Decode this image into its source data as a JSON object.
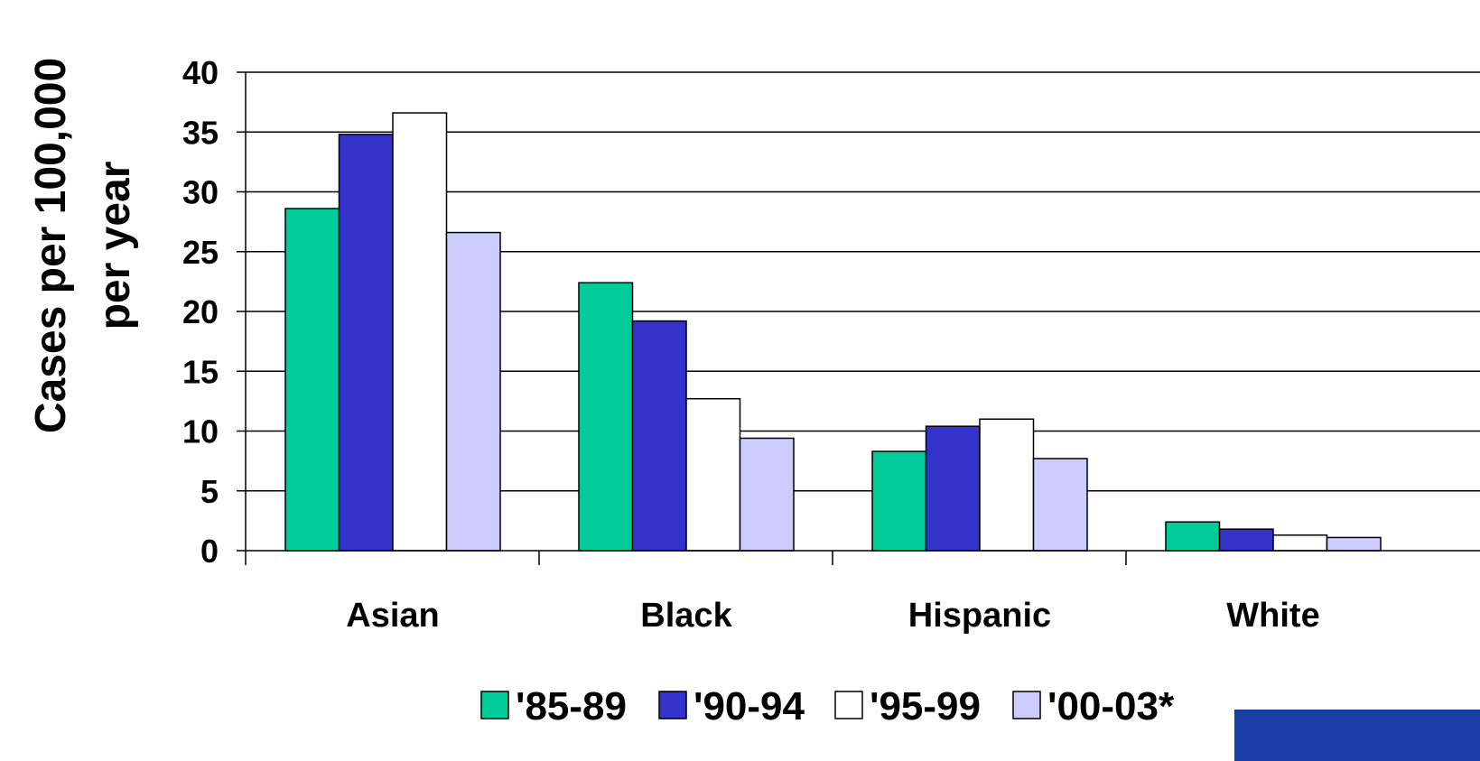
{
  "chart_data": {
    "type": "bar",
    "title": "",
    "xlabel": "",
    "ylabel": {
      "line1": "Cases per 100,000",
      "line2": "per year"
    },
    "ylim": [
      0,
      40
    ],
    "yticks": [
      "0",
      "5",
      "10",
      "15",
      "20",
      "25",
      "30",
      "35",
      "40"
    ],
    "grid": true,
    "legend_position": "bottom",
    "categories": [
      "Asian",
      "Black",
      "Hispanic",
      "White"
    ],
    "series": [
      {
        "name": "'85-89",
        "color": "#00cc99",
        "values": [
          28.6,
          22.4,
          8.3,
          2.4
        ]
      },
      {
        "name": "'90-94",
        "color": "#3333cc",
        "values": [
          34.8,
          19.2,
          10.4,
          1.8
        ]
      },
      {
        "name": "'95-99",
        "color": "#ffffff",
        "values": [
          36.6,
          12.7,
          11.0,
          1.3
        ]
      },
      {
        "name": "'00-03*",
        "color": "#ccccff",
        "values": [
          26.6,
          9.4,
          7.7,
          1.1
        ]
      }
    ]
  },
  "decor": {
    "corner_block_color": "#1a3ea6"
  }
}
